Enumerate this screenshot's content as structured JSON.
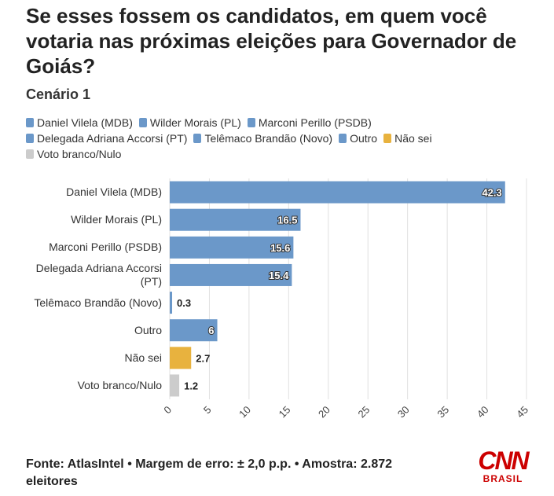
{
  "chart_data": {
    "type": "barh",
    "title": "Se esses fossem os candidatos, em quem você votaria nas próximas eleições para Governador de Goiás?",
    "subtitle": "Cenário 1",
    "categories": [
      "Daniel Vilela (MDB)",
      "Wilder Morais (PL)",
      "Marconi Perillo (PSDB)",
      "Delegada Adriana Accorsi (PT)",
      "Telêmaco Brandão (Novo)",
      "Outro",
      "Não sei",
      "Voto branco/Nulo"
    ],
    "values": [
      42.3,
      16.5,
      15.6,
      15.4,
      0.3,
      6,
      2.7,
      1.2
    ],
    "colors": [
      "#6b98c9",
      "#6b98c9",
      "#6b98c9",
      "#6b98c9",
      "#6b98c9",
      "#6b98c9",
      "#e8b23e",
      "#cccccc"
    ],
    "xlim": [
      0,
      45
    ],
    "xticks": [
      0,
      5,
      10,
      15,
      20,
      25,
      30,
      35,
      40,
      45
    ],
    "grid": true,
    "source": "Fonte: AtlasIntel • Margem de erro: ± 2,0 p.p. • Amostra: 2.872 eleitores",
    "logo": "CNN",
    "logo_subtitle": "BRASIL"
  }
}
